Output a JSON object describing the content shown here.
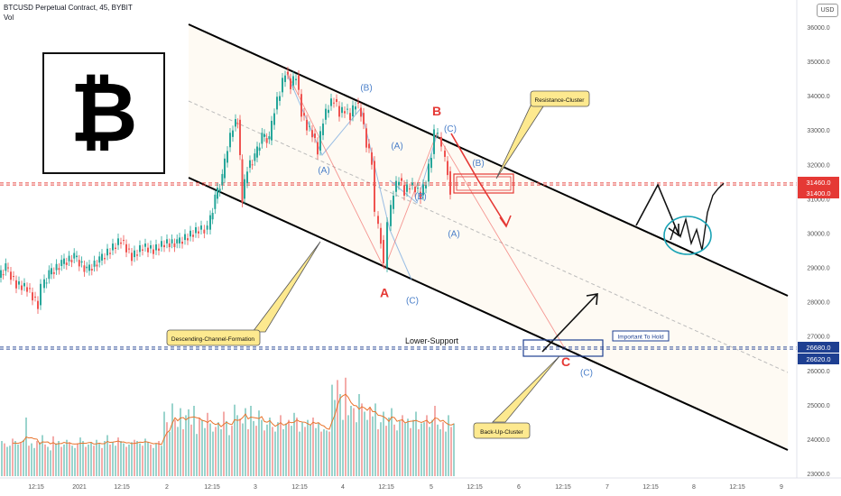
{
  "header": {
    "symbol": "BTCUSD Perpetual Contract, 45, BYBIT",
    "volume_label": "Vol"
  },
  "currency_button": "USD",
  "logo": {
    "glyph": "₿",
    "icon": "bitcoin-logo-icon"
  },
  "colors": {
    "up": "#26a69a",
    "down": "#ef5350",
    "resistance": "#e53935",
    "support": "#1e3f91",
    "wave_blue": "#4a7fc9",
    "callout_fill": "#fde98f",
    "ellipse": "#1aa3b5",
    "volume_ma": "#e8742c"
  },
  "chart_data": {
    "type": "line",
    "title": "BTCUSD Perpetual Contract, 45, BYBIT",
    "ylim": [
      22800,
      36400
    ],
    "y_ticks": [
      "36000.0",
      "35000.0",
      "34000.0",
      "33000.0",
      "32000.0",
      "31000.0",
      "30000.0",
      "29000.0",
      "28000.0",
      "27000.0",
      "26000.0",
      "25000.0",
      "24000.0",
      "23000.0"
    ],
    "x_ticks": [
      "12:15",
      "2021",
      "12:15",
      "2",
      "12:15",
      "3",
      "12:15",
      "4",
      "12:15",
      "5",
      "12:15",
      "6",
      "12:15",
      "7",
      "12:15",
      "8",
      "12:15",
      "9"
    ],
    "price_path": [
      [
        0,
        28700
      ],
      [
        8,
        29000
      ],
      [
        20,
        28500
      ],
      [
        32,
        28400
      ],
      [
        44,
        27900
      ],
      [
        48,
        28400
      ],
      [
        56,
        28800
      ],
      [
        70,
        29100
      ],
      [
        84,
        29300
      ],
      [
        98,
        28900
      ],
      [
        112,
        29200
      ],
      [
        124,
        29500
      ],
      [
        136,
        29800
      ],
      [
        148,
        29300
      ],
      [
        160,
        29600
      ],
      [
        172,
        29500
      ],
      [
        184,
        29700
      ],
      [
        198,
        29700
      ],
      [
        210,
        29900
      ],
      [
        222,
        30100
      ],
      [
        232,
        30100
      ],
      [
        240,
        31000
      ],
      [
        248,
        31600
      ],
      [
        254,
        32500
      ],
      [
        260,
        33100
      ],
      [
        265,
        33300
      ],
      [
        270,
        31000
      ],
      [
        276,
        31900
      ],
      [
        284,
        32200
      ],
      [
        292,
        32800
      ],
      [
        300,
        32700
      ],
      [
        306,
        33600
      ],
      [
        312,
        34100
      ],
      [
        318,
        34700
      ],
      [
        324,
        34300
      ],
      [
        330,
        34600
      ],
      [
        336,
        33500
      ],
      [
        342,
        33100
      ],
      [
        348,
        32900
      ],
      [
        354,
        32400
      ],
      [
        360,
        33300
      ],
      [
        366,
        33700
      ],
      [
        372,
        33900
      ],
      [
        378,
        33500
      ],
      [
        384,
        33600
      ],
      [
        390,
        33400
      ],
      [
        396,
        33800
      ],
      [
        402,
        33500
      ],
      [
        408,
        32600
      ],
      [
        414,
        32100
      ],
      [
        418,
        30500
      ],
      [
        424,
        29800
      ],
      [
        428,
        29000
      ],
      [
        432,
        30200
      ],
      [
        438,
        31200
      ],
      [
        444,
        31600
      ],
      [
        450,
        31200
      ],
      [
        456,
        31400
      ],
      [
        462,
        31300
      ],
      [
        468,
        31100
      ],
      [
        474,
        31500
      ],
      [
        480,
        32300
      ],
      [
        484,
        32900
      ],
      [
        488,
        32800
      ],
      [
        492,
        32400
      ],
      [
        498,
        31800
      ],
      [
        502,
        31000
      ]
    ],
    "projection_path": [
      [
        743,
        29800
      ],
      [
        748,
        30200
      ],
      [
        754,
        29900
      ],
      [
        760,
        30400
      ],
      [
        766,
        29700
      ],
      [
        772,
        30100
      ],
      [
        778,
        29500
      ],
      [
        784,
        30600
      ],
      [
        790,
        31100
      ],
      [
        796,
        31300
      ],
      [
        802,
        31450
      ]
    ],
    "volume_ylim": [
      0,
      100
    ],
    "volume_values": [
      30,
      28,
      25,
      26,
      32,
      30,
      27,
      29,
      31,
      50,
      26,
      28,
      24,
      30,
      29,
      35,
      27,
      25,
      22,
      34,
      28,
      30,
      25,
      27,
      31,
      29,
      26,
      24,
      28,
      33,
      30,
      25,
      27,
      29,
      26,
      31,
      28,
      24,
      30,
      35,
      27,
      29,
      26,
      33,
      30,
      28,
      25,
      27,
      29,
      31,
      30,
      28,
      26,
      32,
      29,
      27,
      24,
      28,
      30,
      26,
      55,
      46,
      38,
      62,
      48,
      42,
      58,
      40,
      52,
      57,
      44,
      60,
      36,
      50,
      48,
      41,
      54,
      45,
      38,
      42,
      46,
      40,
      55,
      47,
      35,
      43,
      61,
      52,
      49,
      45,
      58,
      40,
      60,
      47,
      43,
      56,
      48,
      39,
      44,
      50,
      42,
      38,
      46,
      52,
      40,
      45,
      48,
      43,
      54,
      50,
      38,
      46,
      42,
      48,
      44,
      50,
      41,
      45,
      38,
      40,
      39,
      38,
      78,
      65,
      82,
      70,
      48,
      84,
      52,
      60,
      58,
      46,
      70,
      62,
      55,
      48,
      59,
      51,
      62,
      40,
      46,
      55,
      43,
      50,
      58,
      44,
      39,
      47,
      52,
      45,
      49,
      41,
      48,
      55,
      40,
      45,
      46,
      52,
      42,
      48,
      60,
      44,
      40,
      46,
      38,
      52,
      42,
      45
    ],
    "levels": [
      {
        "label": "31460.0",
        "value": 31460,
        "color": "#e53935"
      },
      {
        "label": "31400.0",
        "value": 31400,
        "color": "#e53935"
      },
      {
        "label": "26680.0",
        "value": 26680,
        "color": "#1e3f91"
      },
      {
        "label": "26620.0",
        "value": 26620,
        "color": "#1e3f91"
      }
    ],
    "wave_labels": [
      {
        "text": "(B)",
        "x": 406,
        "y": 34150,
        "color": "#4a7fc9",
        "size": 10
      },
      {
        "text": "(A)",
        "x": 359,
        "y": 31750,
        "color": "#4a7fc9",
        "size": 10
      },
      {
        "text": "(A)",
        "x": 440,
        "y": 32450,
        "color": "#4a7fc9",
        "size": 10
      },
      {
        "text": "(B)",
        "x": 466,
        "y": 30980,
        "color": "#4a7fc9",
        "size": 10
      },
      {
        "text": "(C)",
        "x": 499,
        "y": 32950,
        "color": "#4a7fc9",
        "size": 10
      },
      {
        "text": "(B)",
        "x": 530,
        "y": 31950,
        "color": "#4a7fc9",
        "size": 10
      },
      {
        "text": "(A)",
        "x": 503,
        "y": 29900,
        "color": "#4a7fc9",
        "size": 10
      },
      {
        "text": "(C)",
        "x": 457,
        "y": 27950,
        "color": "#4a7fc9",
        "size": 10
      },
      {
        "text": "(C)",
        "x": 650,
        "y": 25850,
        "color": "#4a7fc9",
        "size": 10
      },
      {
        "text": "B",
        "x": 484,
        "y": 33430,
        "color": "#e53935",
        "size": 14
      },
      {
        "text": "A",
        "x": 426,
        "y": 28130,
        "color": "#e53935",
        "size": 14
      },
      {
        "text": "C",
        "x": 627,
        "y": 26130,
        "color": "#e53935",
        "size": 14
      }
    ],
    "annotations": {
      "resistance_cluster": "Resistance-Cluster",
      "descending_channel": "Descending-Channel-Formation",
      "lower_support": "Lower-Support",
      "important_to_hold": "Important To Hold",
      "back_up_cluster": "Back-Up-Cluster"
    },
    "grid": false
  }
}
